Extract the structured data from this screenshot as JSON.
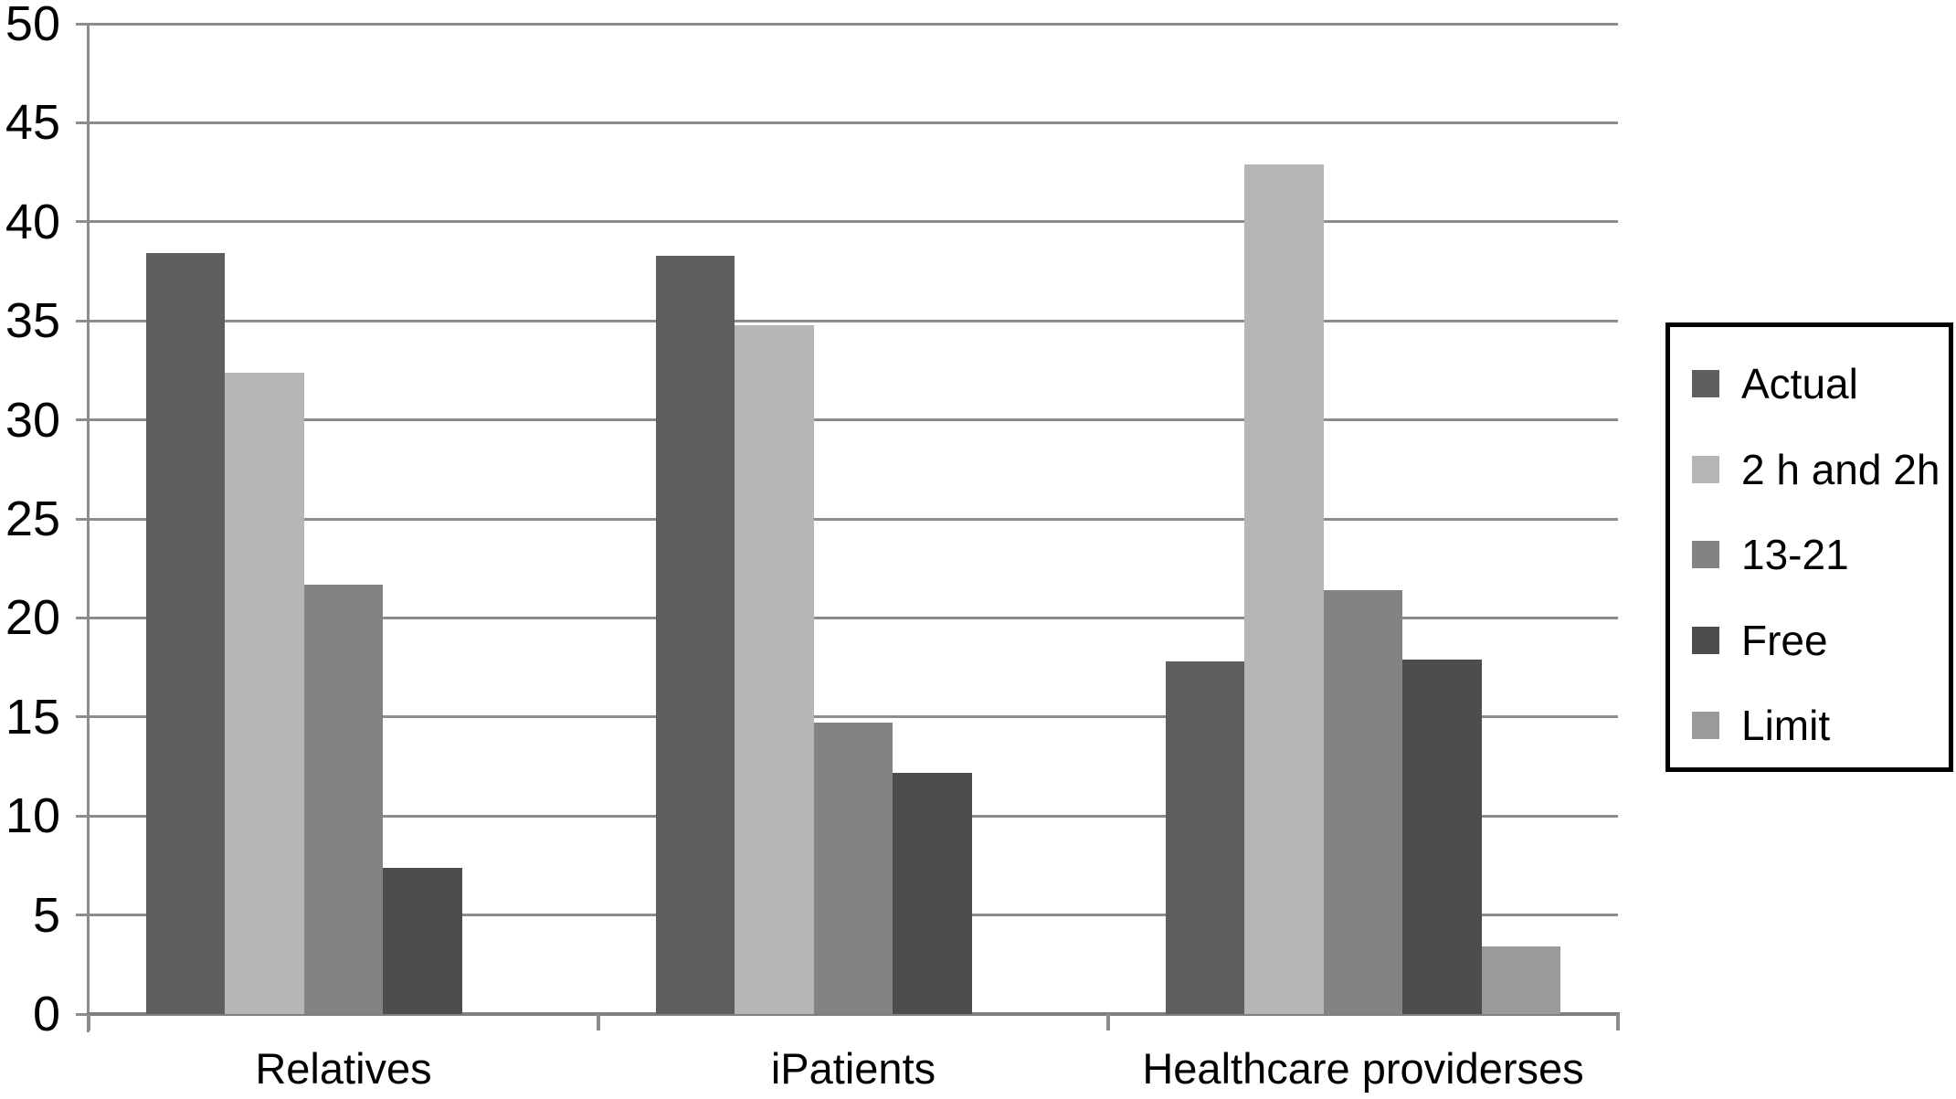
{
  "chart_data": {
    "type": "bar",
    "title": "",
    "xlabel": "",
    "ylabel": "",
    "categories": [
      "Relatives",
      "iPatients",
      "Healthcare providerses"
    ],
    "series": [
      {
        "name": "Actual",
        "color": "#5e5e5e",
        "values": [
          38.4,
          38.3,
          17.8
        ]
      },
      {
        "name": "2 h and 2h",
        "color": "#b6b6b6",
        "values": [
          32.4,
          34.8,
          42.9
        ]
      },
      {
        "name": "13-21",
        "color": "#838383",
        "values": [
          21.7,
          14.7,
          21.4
        ]
      },
      {
        "name": "Free",
        "color": "#4d4d4d",
        "values": [
          7.4,
          12.2,
          17.9
        ]
      },
      {
        "name": "Limit",
        "color": "#9a9a9a",
        "values": [
          0,
          0,
          3.4
        ]
      }
    ],
    "ylim": [
      0,
      50
    ],
    "yticks": [
      0,
      5,
      10,
      15,
      20,
      25,
      30,
      35,
      40,
      45,
      50
    ],
    "grid": true,
    "legend_position": "right"
  },
  "colors": {
    "background": "#ffffff",
    "gridline": "#8c8c8c",
    "axis": "#7f7f7f",
    "text": "#000000",
    "legend_border": "#000000"
  }
}
